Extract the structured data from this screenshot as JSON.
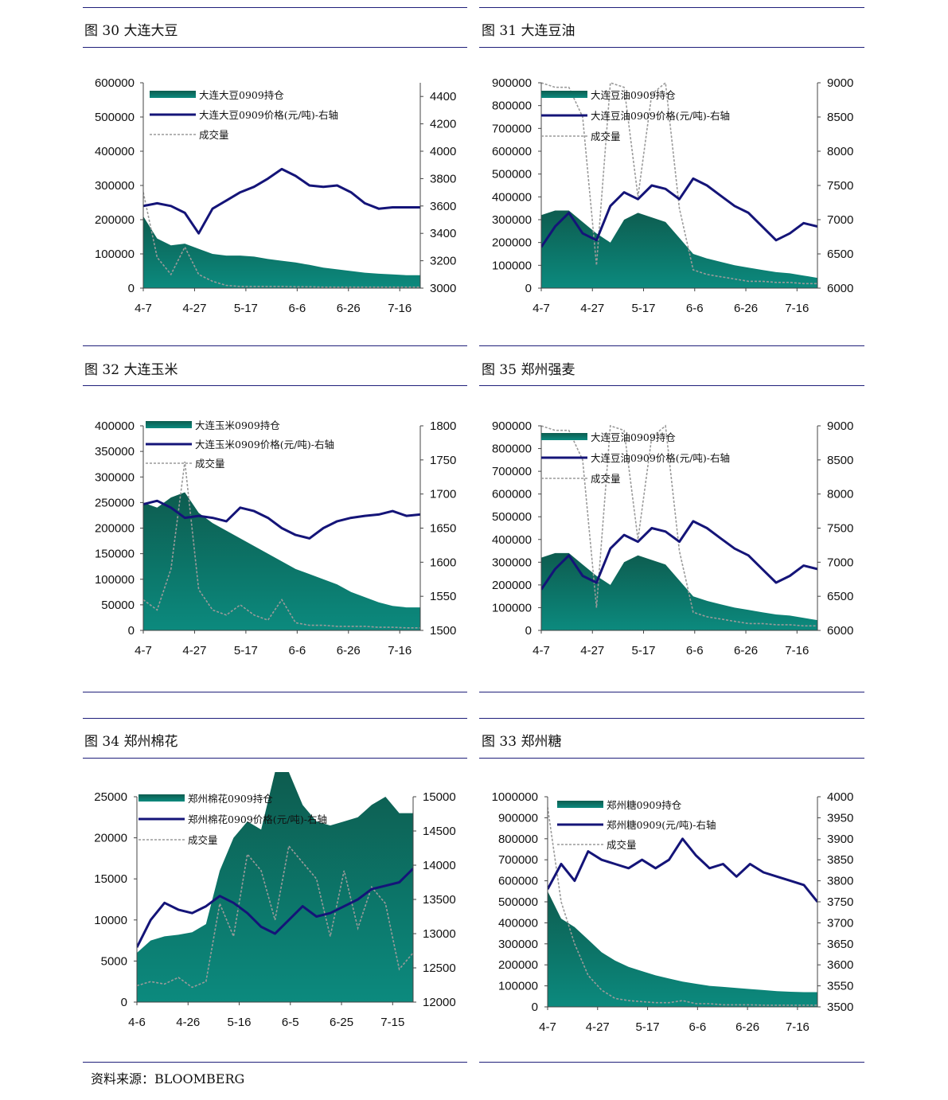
{
  "source_text": "资料来源：BLOOMBERG",
  "colors": {
    "area_top": "#0d5c4f",
    "area_bottom": "#0c8a7e",
    "price_line": "#141478",
    "volume_line": "#9a9a9a",
    "rule": "#1f1f7a"
  },
  "charts": [
    {
      "id": "c30",
      "title": "图 30  大连大豆",
      "legend": [
        "大连大豆0909持仓",
        "大连大豆0909价格(元/吨)-右轴",
        "成交量"
      ],
      "chart_data": {
        "type": "area",
        "x_tick_labels": [
          "4-7",
          "4-27",
          "5-17",
          "6-6",
          "6-26",
          "7-16"
        ],
        "left_axis": [
          0,
          600000
        ],
        "left_ticks": [
          0,
          100000,
          200000,
          300000,
          400000,
          500000,
          600000
        ],
        "right_axis": [
          3000,
          4500
        ],
        "right_ticks": [
          3000,
          3200,
          3400,
          3600,
          3800,
          4000,
          4200,
          4400
        ],
        "positions": [
          0,
          0.05,
          0.1,
          0.15,
          0.2,
          0.25,
          0.3,
          0.35,
          0.4,
          0.45,
          0.5,
          0.55,
          0.6,
          0.65,
          0.7,
          0.75,
          0.8,
          0.85,
          0.9,
          0.95,
          1
        ],
        "series": [
          {
            "name": "大连大豆0909持仓",
            "kind": "area",
            "axis": "left",
            "values": [
              210000,
              145000,
              125000,
              130000,
              115000,
              100000,
              95000,
              95000,
              92000,
              85000,
              80000,
              75000,
              68000,
              60000,
              55000,
              50000,
              45000,
              42000,
              40000,
              38000,
              38000
            ]
          },
          {
            "name": "大连大豆0909价格(元/吨)-右轴",
            "kind": "line",
            "axis": "right",
            "values": [
              3600,
              3620,
              3600,
              3550,
              3400,
              3580,
              3640,
              3700,
              3740,
              3800,
              3870,
              3820,
              3750,
              3740,
              3750,
              3700,
              3620,
              3580,
              3590,
              3590,
              3590
            ]
          },
          {
            "name": "成交量",
            "kind": "dashed",
            "axis": "left",
            "values": [
              280000,
              90000,
              40000,
              120000,
              40000,
              20000,
              8000,
              5000,
              5000,
              5000,
              5000,
              4000,
              4000,
              3000,
              3000,
              3000,
              3000,
              3000,
              3000,
              3000,
              3000
            ]
          }
        ]
      }
    },
    {
      "id": "c31",
      "title": "图 31  大连豆油",
      "legend": [
        "大连豆油0909持仓",
        "大连豆油0909价格(元/吨)-右轴",
        "成交量"
      ],
      "chart_data": {
        "type": "area",
        "x_tick_labels": [
          "4-7",
          "4-27",
          "5-17",
          "6-6",
          "6-26",
          "7-16"
        ],
        "left_axis": [
          0,
          900000
        ],
        "left_ticks": [
          0,
          100000,
          200000,
          300000,
          400000,
          500000,
          600000,
          700000,
          800000,
          900000
        ],
        "right_axis": [
          6000,
          9000
        ],
        "right_ticks": [
          6000,
          6500,
          7000,
          7500,
          8000,
          8500,
          9000
        ],
        "positions": [
          0,
          0.05,
          0.1,
          0.15,
          0.2,
          0.25,
          0.3,
          0.35,
          0.4,
          0.45,
          0.5,
          0.55,
          0.6,
          0.65,
          0.7,
          0.75,
          0.8,
          0.85,
          0.9,
          0.95,
          1
        ],
        "series": [
          {
            "name": "大连豆油0909持仓",
            "kind": "area",
            "axis": "left",
            "values": [
              320000,
              340000,
              340000,
              290000,
              240000,
              200000,
              300000,
              330000,
              310000,
              290000,
              220000,
              150000,
              130000,
              115000,
              100000,
              90000,
              80000,
              70000,
              65000,
              55000,
              45000
            ]
          },
          {
            "name": "大连豆油0909价格(元/吨)-右轴",
            "kind": "line",
            "axis": "right",
            "values": [
              6600,
              6900,
              7100,
              6800,
              6700,
              7200,
              7400,
              7300,
              7500,
              7450,
              7300,
              7600,
              7500,
              7350,
              7200,
              7100,
              6900,
              6700,
              6800,
              6950,
              6900
            ]
          },
          {
            "name": "成交量",
            "kind": "dashed",
            "axis": "left",
            "values": [
              900000,
              880000,
              880000,
              750000,
              100000,
              900000,
              880000,
              400000,
              850000,
              900000,
              350000,
              80000,
              60000,
              50000,
              40000,
              30000,
              30000,
              25000,
              25000,
              20000,
              20000
            ]
          }
        ]
      }
    },
    {
      "id": "c32",
      "title": "图 32  大连玉米",
      "legend": [
        "大连玉米0909持仓",
        "大连玉米0909价格(元/吨)-右轴",
        "成交量"
      ],
      "chart_data": {
        "type": "area",
        "x_tick_labels": [
          "4-7",
          "4-27",
          "5-17",
          "6-6",
          "6-26",
          "7-16"
        ],
        "left_axis": [
          0,
          400000
        ],
        "left_ticks": [
          0,
          50000,
          100000,
          150000,
          200000,
          250000,
          300000,
          350000,
          400000
        ],
        "right_axis": [
          1500,
          1800
        ],
        "right_ticks": [
          1500,
          1550,
          1600,
          1650,
          1700,
          1750,
          1800
        ],
        "positions": [
          0,
          0.05,
          0.1,
          0.15,
          0.2,
          0.25,
          0.3,
          0.35,
          0.4,
          0.45,
          0.5,
          0.55,
          0.6,
          0.65,
          0.7,
          0.75,
          0.8,
          0.85,
          0.9,
          0.95,
          1
        ],
        "series": [
          {
            "name": "大连玉米0909持仓",
            "kind": "area",
            "axis": "left",
            "values": [
              250000,
              240000,
              260000,
              270000,
              230000,
              210000,
              195000,
              180000,
              165000,
              150000,
              135000,
              120000,
              110000,
              100000,
              90000,
              75000,
              65000,
              55000,
              48000,
              45000,
              45000
            ]
          },
          {
            "name": "大连玉米0909价格(元/吨)-右轴",
            "kind": "line",
            "axis": "right",
            "values": [
              1685,
              1690,
              1680,
              1665,
              1668,
              1665,
              1660,
              1680,
              1675,
              1665,
              1650,
              1640,
              1635,
              1650,
              1660,
              1665,
              1668,
              1670,
              1675,
              1668,
              1670
            ]
          },
          {
            "name": "成交量",
            "kind": "dashed",
            "axis": "left",
            "values": [
              60000,
              40000,
              120000,
              330000,
              80000,
              40000,
              30000,
              50000,
              30000,
              20000,
              60000,
              15000,
              10000,
              10000,
              8000,
              8000,
              8000,
              6000,
              6000,
              5000,
              5000
            ]
          }
        ]
      }
    },
    {
      "id": "c35",
      "title": "图 35  郑州强麦",
      "legend": [
        "大连豆油0909持仓",
        "大连豆油0909价格(元/吨)-右轴",
        "成交量"
      ],
      "chart_data": {
        "type": "area",
        "x_tick_labels": [
          "4-7",
          "4-27",
          "5-17",
          "6-6",
          "6-26",
          "7-16"
        ],
        "left_axis": [
          0,
          900000
        ],
        "left_ticks": [
          0,
          100000,
          200000,
          300000,
          400000,
          500000,
          600000,
          700000,
          800000,
          900000
        ],
        "right_axis": [
          6000,
          9000
        ],
        "right_ticks": [
          6000,
          6500,
          7000,
          7500,
          8000,
          8500,
          9000
        ],
        "positions": [
          0,
          0.05,
          0.1,
          0.15,
          0.2,
          0.25,
          0.3,
          0.35,
          0.4,
          0.45,
          0.5,
          0.55,
          0.6,
          0.65,
          0.7,
          0.75,
          0.8,
          0.85,
          0.9,
          0.95,
          1
        ],
        "series": [
          {
            "name": "大连豆油0909持仓",
            "kind": "area",
            "axis": "left",
            "values": [
              320000,
              340000,
              340000,
              290000,
              240000,
              200000,
              300000,
              330000,
              310000,
              290000,
              220000,
              150000,
              130000,
              115000,
              100000,
              90000,
              80000,
              70000,
              65000,
              55000,
              45000
            ]
          },
          {
            "name": "大连豆油0909价格(元/吨)-右轴",
            "kind": "line",
            "axis": "right",
            "values": [
              6600,
              6900,
              7100,
              6800,
              6700,
              7200,
              7400,
              7300,
              7500,
              7450,
              7300,
              7600,
              7500,
              7350,
              7200,
              7100,
              6900,
              6700,
              6800,
              6950,
              6900
            ]
          },
          {
            "name": "成交量",
            "kind": "dashed",
            "axis": "left",
            "values": [
              900000,
              880000,
              880000,
              750000,
              100000,
              900000,
              880000,
              400000,
              850000,
              900000,
              350000,
              80000,
              60000,
              50000,
              40000,
              30000,
              30000,
              25000,
              25000,
              20000,
              20000
            ]
          }
        ]
      }
    },
    {
      "id": "c34",
      "title": "图 34  郑州棉花",
      "legend": [
        "郑州棉花0909持仓",
        "郑州棉花0909价格(元/吨)-右轴",
        "成交量"
      ],
      "chart_data": {
        "type": "area",
        "x_tick_labels": [
          "4-6",
          "4-26",
          "5-16",
          "6-5",
          "6-25",
          "7-15"
        ],
        "left_axis": [
          0,
          25000
        ],
        "left_ticks": [
          0,
          5000,
          10000,
          15000,
          20000,
          25000
        ],
        "right_axis": [
          12000,
          15000
        ],
        "right_ticks": [
          12000,
          12500,
          13000,
          13500,
          14000,
          14500,
          15000
        ],
        "positions": [
          0,
          0.05,
          0.1,
          0.15,
          0.2,
          0.25,
          0.3,
          0.35,
          0.4,
          0.45,
          0.5,
          0.55,
          0.6,
          0.65,
          0.7,
          0.75,
          0.8,
          0.85,
          0.9,
          0.95,
          1
        ],
        "series": [
          {
            "name": "郑州棉花0909持仓",
            "kind": "area",
            "axis": "left",
            "values": [
              6000,
              7500,
              8000,
              8200,
              8500,
              9500,
              16000,
              20000,
              22000,
              21000,
              28000,
              28000,
              24000,
              22000,
              21500,
              22000,
              22500,
              24000,
              25000,
              23000,
              23000
            ]
          },
          {
            "name": "郑州棉花0909价格(元/吨)-右轴",
            "kind": "line",
            "axis": "right",
            "values": [
              12800,
              13200,
              13450,
              13350,
              13300,
              13400,
              13550,
              13450,
              13300,
              13100,
              13000,
              13200,
              13400,
              13250,
              13300,
              13400,
              13500,
              13650,
              13700,
              13750,
              13950
            ]
          },
          {
            "name": "成交量",
            "kind": "dashed",
            "axis": "left",
            "values": [
              2000,
              2500,
              2200,
              3000,
              1800,
              2500,
              12000,
              8000,
              18000,
              16000,
              10000,
              19000,
              17000,
              15000,
              8000,
              16000,
              9000,
              14000,
              12000,
              4000,
              6000
            ]
          }
        ]
      }
    },
    {
      "id": "c33",
      "title": "图 33  郑州糖",
      "legend": [
        "郑州糖0909持仓",
        "郑州糖0909(元/吨)-右轴",
        "成交量"
      ],
      "chart_data": {
        "type": "area",
        "x_tick_labels": [
          "4-7",
          "4-27",
          "5-17",
          "6-6",
          "6-26",
          "7-16"
        ],
        "left_axis": [
          0,
          1000000
        ],
        "left_ticks": [
          0,
          100000,
          200000,
          300000,
          400000,
          500000,
          600000,
          700000,
          800000,
          900000,
          1000000
        ],
        "right_axis": [
          3500,
          4000
        ],
        "right_ticks": [
          3500,
          3550,
          3600,
          3650,
          3700,
          3750,
          3800,
          3850,
          3900,
          3950,
          4000
        ],
        "positions": [
          0,
          0.05,
          0.1,
          0.15,
          0.2,
          0.25,
          0.3,
          0.35,
          0.4,
          0.45,
          0.5,
          0.55,
          0.6,
          0.65,
          0.7,
          0.75,
          0.8,
          0.85,
          0.9,
          0.95,
          1
        ],
        "series": [
          {
            "name": "郑州糖0909持仓",
            "kind": "area",
            "axis": "left",
            "values": [
              550000,
              420000,
              380000,
              320000,
              260000,
              220000,
              190000,
              170000,
              150000,
              135000,
              120000,
              110000,
              100000,
              95000,
              90000,
              85000,
              80000,
              75000,
              72000,
              70000,
              70000
            ]
          },
          {
            "name": "郑州糖0909(元/吨)-右轴",
            "kind": "line",
            "axis": "right",
            "values": [
              3780,
              3840,
              3800,
              3870,
              3850,
              3840,
              3830,
              3850,
              3830,
              3850,
              3900,
              3860,
              3830,
              3840,
              3810,
              3840,
              3820,
              3810,
              3800,
              3790,
              3750
            ]
          },
          {
            "name": "成交量",
            "kind": "dashed",
            "axis": "left",
            "values": [
              950000,
              500000,
              300000,
              150000,
              80000,
              40000,
              30000,
              25000,
              20000,
              20000,
              30000,
              15000,
              15000,
              10000,
              10000,
              10000,
              8000,
              8000,
              8000,
              8000,
              8000
            ]
          }
        ]
      }
    }
  ]
}
